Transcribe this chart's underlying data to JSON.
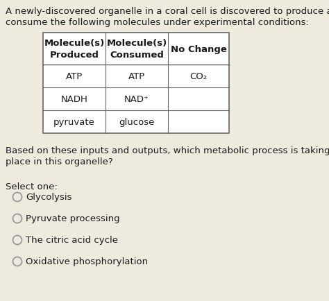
{
  "bg_color": "#eeeade",
  "text_color": "#1a1a1a",
  "intro_line1": "A newly-discovered organelle in a coral cell is discovered to produce and",
  "intro_line2": "consume the following molecules under experimental conditions:",
  "table": {
    "headers": [
      "Molecule(s)\nProduced",
      "Molecule(s)\nConsumed",
      "No Change"
    ],
    "rows": [
      [
        "ATP",
        "ATP",
        "CO₂"
      ],
      [
        "NADH",
        "NAD⁺",
        ""
      ],
      [
        "pyruvate",
        "glucose",
        ""
      ]
    ]
  },
  "question_line1": "Based on these inputs and outputs, which metabolic process is taking",
  "question_line2": "place in this organelle?",
  "select_label": "Select one:",
  "options": [
    "Glycolysis",
    "Pyruvate processing",
    "The citric acid cycle",
    "Oxidative phosphorylation"
  ]
}
